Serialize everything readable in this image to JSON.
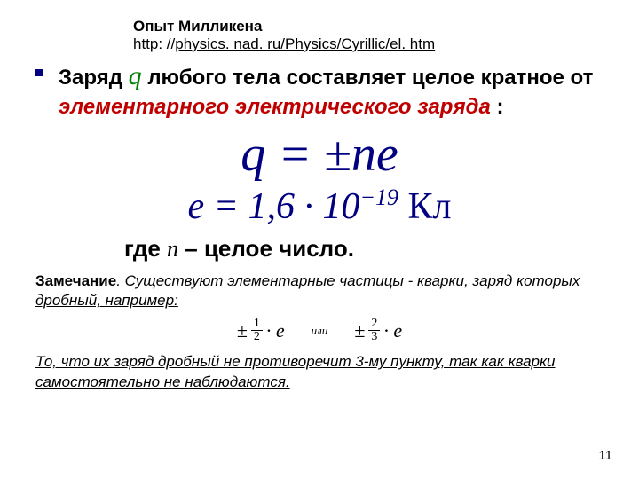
{
  "header": {
    "title": "Опыт Милликена",
    "link_prefix": "http: //",
    "link_text": "physics. nad. ru/Physics/Cyrillic/el. htm"
  },
  "main": {
    "part1": "Заряд  ",
    "q": "q",
    "part2": "  любого тела составляет целое кратное от ",
    "red": "элементарного электрического заряда",
    "part3": " :"
  },
  "formula1": "q = ±ne",
  "formula2_lhs": "e = 1,6 · 10",
  "formula2_exp": "−19",
  "formula2_unit": "  Кл",
  "where": {
    "part1": "где ",
    "n": "n",
    "part2": " – целое число."
  },
  "remark": {
    "label": "Замечание",
    "text": ". Существуют элементарные частицы - кварки, заряд которых дробный, ",
    "tail": "например:"
  },
  "fractions": {
    "pm": "±",
    "dot_e": "· e",
    "f1_num": "1",
    "f1_den": "2",
    "ili": "или",
    "f2_num": "2",
    "f2_den": "3"
  },
  "final": "То, что их заряд дробный не противоречит 3-му пункту, так как кварки самостоятельно не наблюдаются.",
  "pagenum": "11",
  "colors": {
    "accent_red": "#c00000",
    "accent_blue": "#000080",
    "accent_green": "#008000"
  }
}
